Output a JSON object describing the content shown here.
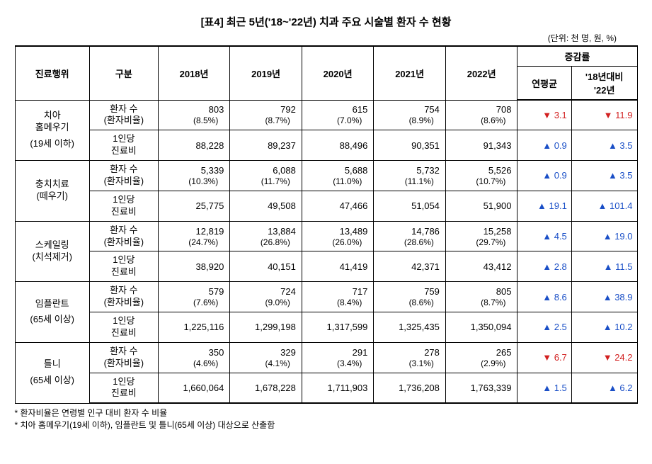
{
  "title": "[표4] 최근 5년('18~'22년) 치과 주요 시술별 환자 수 현황",
  "unit": "(단위: 천 명, 원, %)",
  "colors": {
    "up": "#1a4fc7",
    "down": "#d22020",
    "border": "#000000",
    "background": "#ffffff"
  },
  "symbols": {
    "up": "▲",
    "down": "▼"
  },
  "headers": {
    "col1": "진료행위",
    "col2": "구분",
    "y2018": "2018년",
    "y2019": "2019년",
    "y2020": "2020년",
    "y2021": "2021년",
    "y2022": "2022년",
    "rate_group": "증감률",
    "rate_avg": "연평균",
    "rate_vs": "'18년대비\n'22년"
  },
  "sublabels": {
    "patients": "환자 수\n(환자비율)",
    "cost": "1인당\n진료비"
  },
  "groups": [
    {
      "name": "치아\n홈메우기",
      "note": "(19세 이하)",
      "patients": {
        "y2018": "803",
        "p2018": "(8.5%)",
        "y2019": "792",
        "p2019": "(8.7%)",
        "y2020": "615",
        "p2020": "(7.0%)",
        "y2021": "754",
        "p2021": "(8.9%)",
        "y2022": "708",
        "p2022": "(8.6%)",
        "avg": {
          "dir": "down",
          "v": "3.1"
        },
        "vs": {
          "dir": "down",
          "v": "11.9"
        }
      },
      "cost": {
        "y2018": "88,228",
        "y2019": "89,237",
        "y2020": "88,496",
        "y2021": "90,351",
        "y2022": "91,343",
        "avg": {
          "dir": "up",
          "v": "0.9"
        },
        "vs": {
          "dir": "up",
          "v": "3.5"
        }
      }
    },
    {
      "name": "충치치료\n(떼우기)",
      "note": "",
      "patients": {
        "y2018": "5,339",
        "p2018": "(10.3%)",
        "y2019": "6,088",
        "p2019": "(11.7%)",
        "y2020": "5,688",
        "p2020": "(11.0%)",
        "y2021": "5,732",
        "p2021": "(11.1%)",
        "y2022": "5,526",
        "p2022": "(10.7%)",
        "avg": {
          "dir": "up",
          "v": "0.9"
        },
        "vs": {
          "dir": "up",
          "v": "3.5"
        }
      },
      "cost": {
        "y2018": "25,775",
        "y2019": "49,508",
        "y2020": "47,466",
        "y2021": "51,054",
        "y2022": "51,900",
        "avg": {
          "dir": "up",
          "v": "19.1"
        },
        "vs": {
          "dir": "up",
          "v": "101.4"
        }
      }
    },
    {
      "name": "스케일링\n(치석제거)",
      "note": "",
      "patients": {
        "y2018": "12,819",
        "p2018": "(24.7%)",
        "y2019": "13,884",
        "p2019": "(26.8%)",
        "y2020": "13,489",
        "p2020": "(26.0%)",
        "y2021": "14,786",
        "p2021": "(28.6%)",
        "y2022": "15,258",
        "p2022": "(29.7%)",
        "avg": {
          "dir": "up",
          "v": "4.5"
        },
        "vs": {
          "dir": "up",
          "v": "19.0"
        }
      },
      "cost": {
        "y2018": "38,920",
        "y2019": "40,151",
        "y2020": "41,419",
        "y2021": "42,371",
        "y2022": "43,412",
        "avg": {
          "dir": "up",
          "v": "2.8"
        },
        "vs": {
          "dir": "up",
          "v": "11.5"
        }
      }
    },
    {
      "name": "임플란트",
      "note": "(65세 이상)",
      "patients": {
        "y2018": "579",
        "p2018": "(7.6%)",
        "y2019": "724",
        "p2019": "(9.0%)",
        "y2020": "717",
        "p2020": "(8.4%)",
        "y2021": "759",
        "p2021": "(8.6%)",
        "y2022": "805",
        "p2022": "(8.7%)",
        "avg": {
          "dir": "up",
          "v": "8.6"
        },
        "vs": {
          "dir": "up",
          "v": "38.9"
        }
      },
      "cost": {
        "y2018": "1,225,116",
        "y2019": "1,299,198",
        "y2020": "1,317,599",
        "y2021": "1,325,435",
        "y2022": "1,350,094",
        "avg": {
          "dir": "up",
          "v": "2.5"
        },
        "vs": {
          "dir": "up",
          "v": "10.2"
        }
      }
    },
    {
      "name": "틀니",
      "note": "(65세 이상)",
      "patients": {
        "y2018": "350",
        "p2018": "(4.6%)",
        "y2019": "329",
        "p2019": "(4.1%)",
        "y2020": "291",
        "p2020": "(3.4%)",
        "y2021": "278",
        "p2021": "(3.1%)",
        "y2022": "265",
        "p2022": "(2.9%)",
        "avg": {
          "dir": "down",
          "v": "6.7"
        },
        "vs": {
          "dir": "down",
          "v": "24.2"
        }
      },
      "cost": {
        "y2018": "1,660,064",
        "y2019": "1,678,228",
        "y2020": "1,711,903",
        "y2021": "1,736,208",
        "y2022": "1,763,339",
        "avg": {
          "dir": "up",
          "v": "1.5"
        },
        "vs": {
          "dir": "up",
          "v": "6.2"
        }
      }
    }
  ],
  "notes": [
    "* 환자비율은 연령별 인구 대비 환자 수 비율",
    "* 치아 홈메우기(19세 이하), 임플란트 및 틀니(65세 이상) 대상으로 산출함"
  ]
}
